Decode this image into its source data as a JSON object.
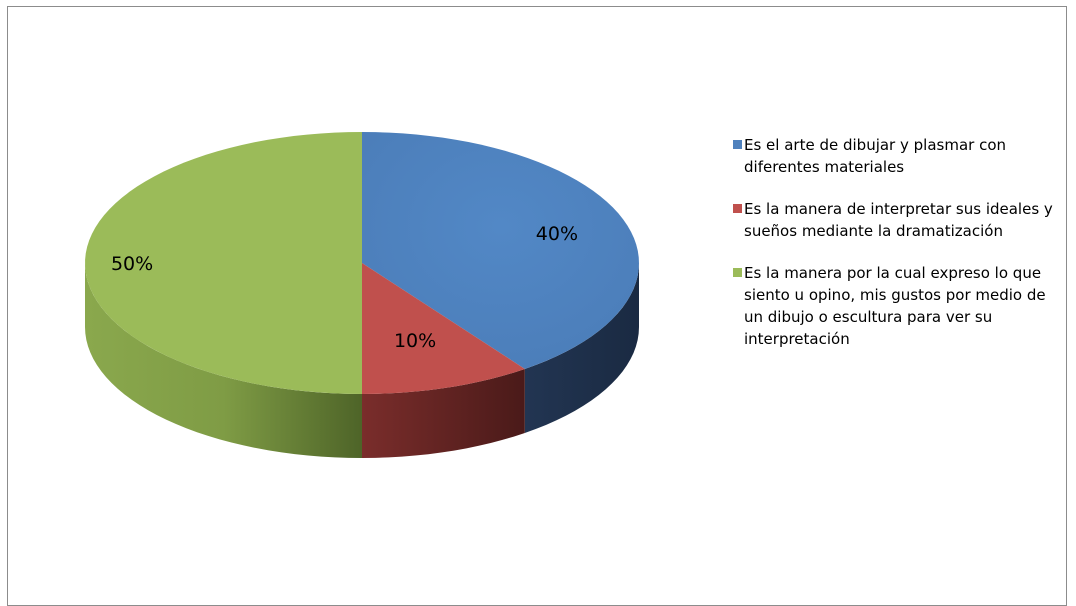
{
  "chart_data": {
    "type": "pie",
    "style": "3d",
    "title": "",
    "slices": [
      {
        "label": "Es el arte de dibujar y plasmar con diferentes materiales",
        "value": 40,
        "value_label": "40%",
        "color": "#4f81bd",
        "side_color": "#243a58"
      },
      {
        "label": "Es la manera de interpretar sus ideales y sueños mediante la dramatización",
        "value": 10,
        "value_label": "10%",
        "color": "#c0504d",
        "side_color": "#5c2321"
      },
      {
        "label": "Es la manera por la cual expreso lo que siento u opino, mis gustos por medio de un dibujo o escultura para ver su interpretación",
        "value": 50,
        "value_label": "50%",
        "color": "#9bbb59",
        "side_color": "#5f7a34"
      }
    ],
    "legend_position": "right"
  },
  "legend": {
    "items": [
      {
        "text": "Es el arte de dibujar y plasmar con diferentes materiales",
        "color": "#4f81bd"
      },
      {
        "text": "Es la manera de interpretar sus ideales y sueños mediante la dramatización",
        "color": "#c0504d"
      },
      {
        "text": "Es la manera por la cual expreso lo que siento u opino, mis gustos por medio de un dibujo o escultura para ver su interpretación",
        "color": "#9bbb59"
      }
    ]
  }
}
